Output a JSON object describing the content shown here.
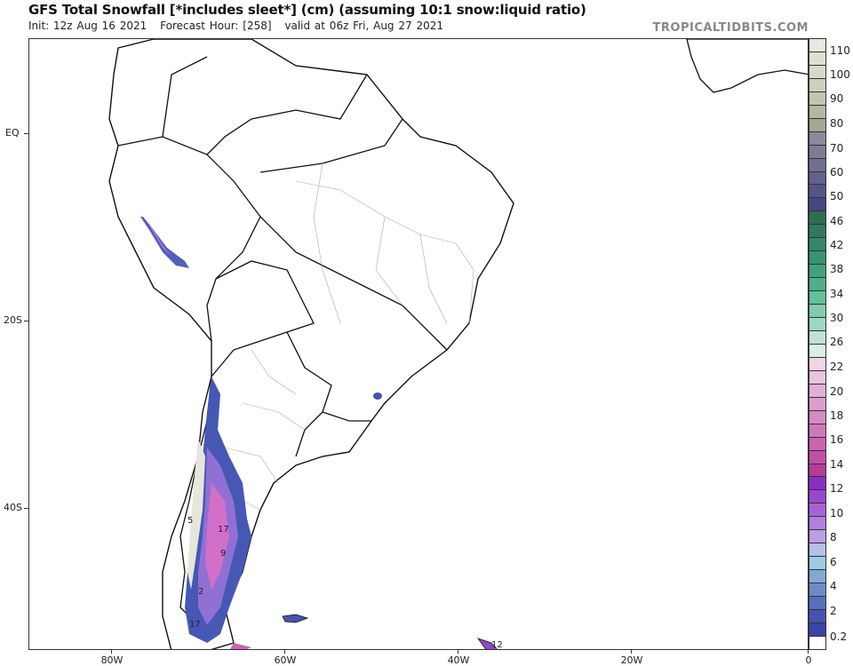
{
  "header": {
    "title": "GFS Total Snowfall [*includes sleet*] (cm) (assuming 10:1 snow:liquid ratio)",
    "init": "Init: 12z Aug 16 2021",
    "forecast_hour": "Forecast Hour: [258]",
    "valid": "valid at 06z Fri, Aug 27 2021",
    "brand": "TROPICALTIDBITS.COM"
  },
  "map": {
    "region": "South America",
    "lat_labels": [
      "EQ",
      "20S",
      "40S"
    ],
    "lon_labels": [
      "80W",
      "60W",
      "40W",
      "20W",
      "0"
    ],
    "contour_labels": [
      "17",
      "5",
      "9",
      "2",
      "17",
      "12"
    ]
  },
  "colorbar": {
    "unit": "cm",
    "labels": [
      "110",
      "100",
      "90",
      "80",
      "70",
      "60",
      "50",
      "46",
      "42",
      "38",
      "34",
      "30",
      "26",
      "22",
      "20",
      "18",
      "16",
      "14",
      "12",
      "10",
      "8",
      "6",
      "4",
      "2",
      "0.2"
    ],
    "bins": [
      "#e8e8dc",
      "#e0e0d2",
      "#d8d8c8",
      "#cfcfbe",
      "#c4c4b2",
      "#b6b6a3",
      "#a6a694",
      "#8a8a9a",
      "#7c7c96",
      "#707090",
      "#62628c",
      "#545488",
      "#464684",
      "#2d6e52",
      "#2f7a5c",
      "#338766",
      "#389470",
      "#3fa27b",
      "#4caf88",
      "#62c09a",
      "#80ccac",
      "#9ed8be",
      "#bde4d2",
      "#d8efe4",
      "#f0d4e8",
      "#e9c2df",
      "#e2b0d6",
      "#dc9ecd",
      "#d58bc4",
      "#ce78ba",
      "#c864b0",
      "#c050a6",
      "#b63c9a",
      "#8c2dc8",
      "#9848d0",
      "#a464d6",
      "#b080dc",
      "#bc9ce2",
      "#b4c0e6",
      "#9ccce0",
      "#84a8d4",
      "#6c8cc8",
      "#5870bc",
      "#4454b0",
      "#3a44a8",
      "#ffffff"
    ]
  }
}
